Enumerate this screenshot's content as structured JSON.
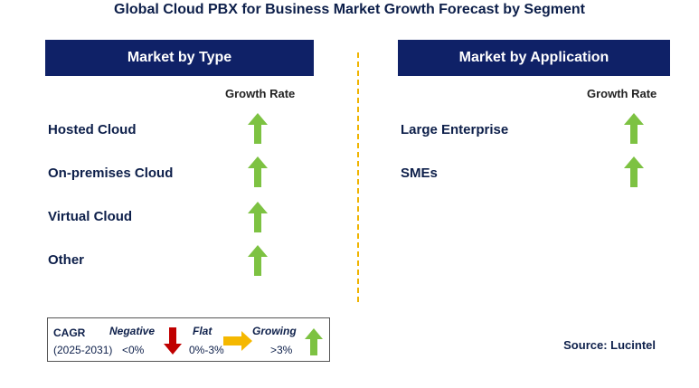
{
  "title": "Global Cloud PBX for Business Market Growth Forecast by Segment",
  "left_panel": {
    "header": "Market by Type",
    "growth_rate_label": "Growth Rate",
    "items": [
      {
        "label": "Hosted Cloud",
        "trend": "growing"
      },
      {
        "label": "On-premises Cloud",
        "trend": "growing"
      },
      {
        "label": "Virtual Cloud",
        "trend": "growing"
      },
      {
        "label": "Other",
        "trend": "growing"
      }
    ]
  },
  "right_panel": {
    "header": "Market by Application",
    "growth_rate_label": "Growth Rate",
    "items": [
      {
        "label": "Large Enterprise",
        "trend": "growing"
      },
      {
        "label": "SMEs",
        "trend": "growing"
      }
    ]
  },
  "legend": {
    "cagr_label": "CAGR",
    "period": "(2025-2031)",
    "negative_label": "Negative",
    "negative_range": "<0%",
    "flat_label": "Flat",
    "flat_range": "0%-3%",
    "growing_label": "Growing",
    "growing_range": ">3%"
  },
  "source": "Source: Lucintel",
  "colors": {
    "header_bg": "#0f2167",
    "growing": "#7dc242",
    "negative": "#c00000",
    "flat": "#f5b800",
    "divider": "#f0b400"
  },
  "icons": {
    "growing": "green-up-arrow-icon",
    "negative": "red-down-arrow-icon",
    "flat": "yellow-right-arrow-icon"
  }
}
